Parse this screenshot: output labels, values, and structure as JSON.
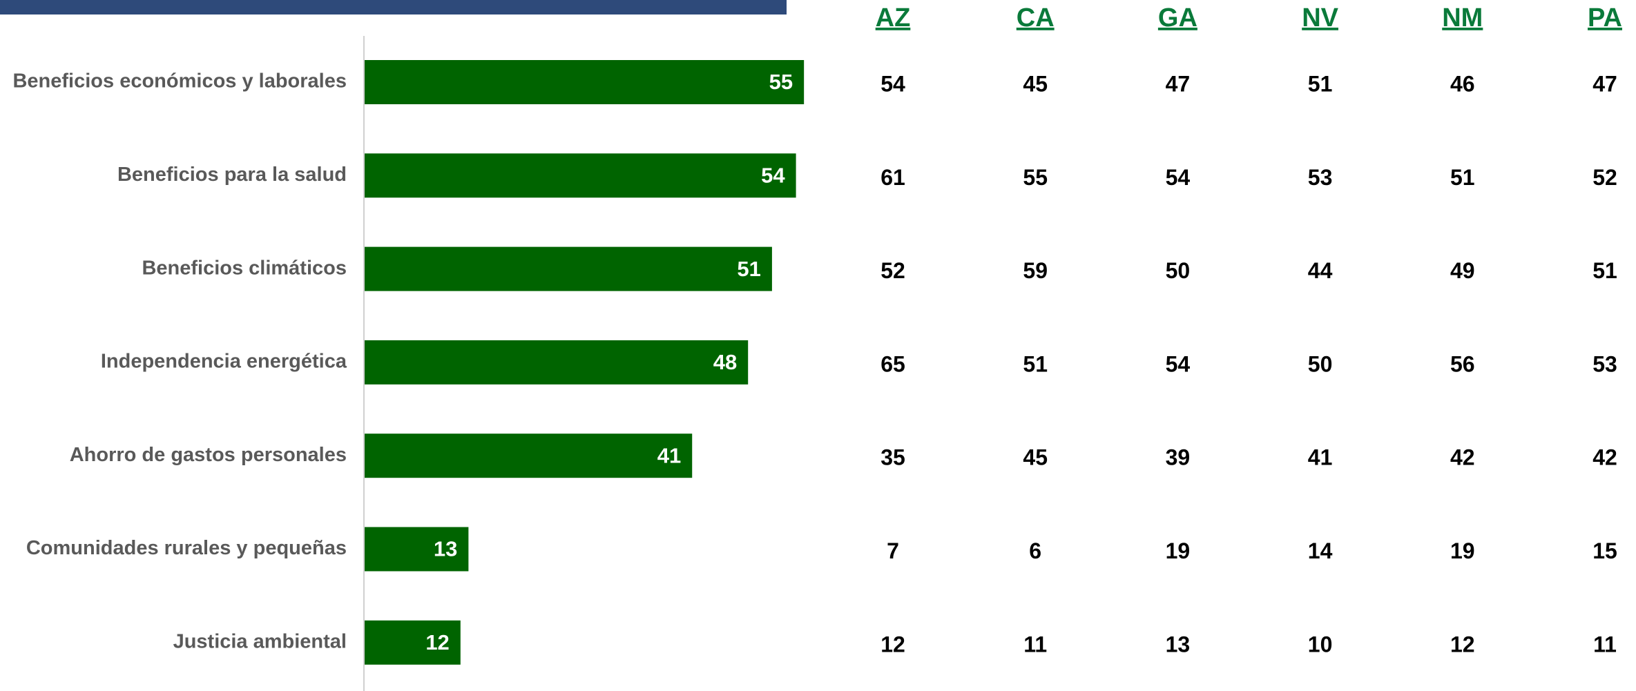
{
  "chart_data": {
    "type": "bar",
    "orientation": "horizontal",
    "color": "#006400",
    "categories": [
      "Beneficios económicos y laborales",
      "Beneficios para la salud",
      "Beneficios climáticos",
      "Independencia energética",
      "Ahorro de gastos personales",
      "Comunidades rurales y pequeñas",
      "Justicia ambiental"
    ],
    "values": [
      55,
      54,
      51,
      48,
      41,
      13,
      12
    ],
    "xlim": [
      0,
      60
    ]
  },
  "state_table": {
    "color": "#0a7a3a",
    "columns": [
      "AZ",
      "CA",
      "GA",
      "NV",
      "NM",
      "PA"
    ],
    "rows": [
      [
        54,
        45,
        47,
        51,
        46,
        47
      ],
      [
        61,
        55,
        54,
        53,
        51,
        52
      ],
      [
        52,
        59,
        50,
        44,
        49,
        51
      ],
      [
        65,
        51,
        54,
        50,
        56,
        53
      ],
      [
        35,
        45,
        39,
        41,
        42,
        42
      ],
      [
        7,
        6,
        19,
        14,
        19,
        15
      ],
      [
        12,
        11,
        13,
        10,
        12,
        11
      ]
    ]
  }
}
